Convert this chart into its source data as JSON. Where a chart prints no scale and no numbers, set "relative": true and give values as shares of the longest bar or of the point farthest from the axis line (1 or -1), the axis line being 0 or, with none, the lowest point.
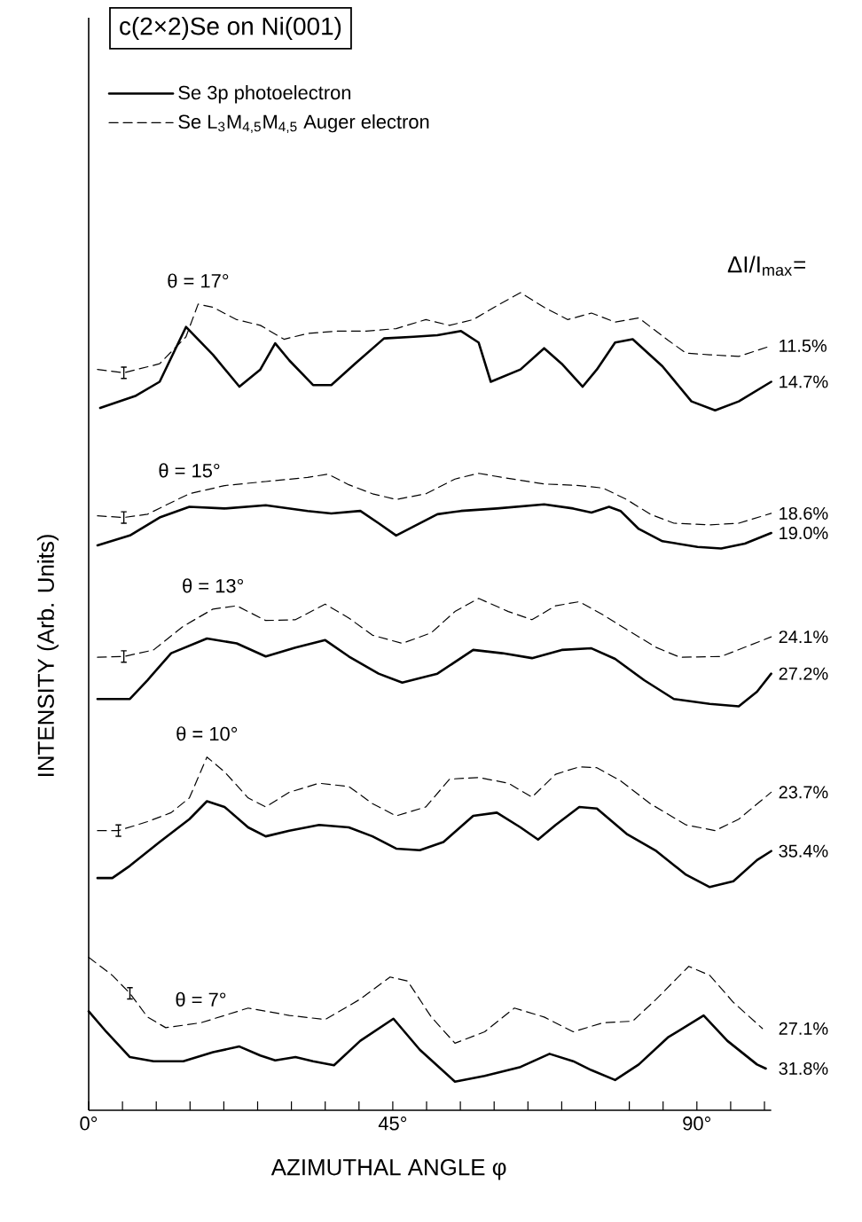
{
  "chart_data": {
    "type": "line",
    "title": "c(2×2)Se on Ni(001)",
    "xlabel": "AZIMUTHAL ANGLE φ",
    "ylabel": "INTENSITY (Arb. Units)",
    "relative": true,
    "legend": "top left",
    "tick_labels": "x",
    "xlim": [
      0,
      101
    ],
    "xticks": [
      {
        "value": 0,
        "label": "0°"
      },
      {
        "value": 5,
        "label": null
      },
      {
        "value": 10,
        "label": null
      },
      {
        "value": 15,
        "label": null
      },
      {
        "value": 20,
        "label": null
      },
      {
        "value": 25,
        "label": null
      },
      {
        "value": 30,
        "label": null
      },
      {
        "value": 35,
        "label": null
      },
      {
        "value": 40,
        "label": null
      },
      {
        "value": 45,
        "label": "45°"
      },
      {
        "value": 50,
        "label": null
      },
      {
        "value": 55,
        "label": null
      },
      {
        "value": 60,
        "label": null
      },
      {
        "value": 65,
        "label": null
      },
      {
        "value": 70,
        "label": null
      },
      {
        "value": 75,
        "label": null
      },
      {
        "value": 80,
        "label": null
      },
      {
        "value": 85,
        "label": null
      },
      {
        "value": 90,
        "label": "90°"
      },
      {
        "value": 95,
        "label": null
      },
      {
        "value": 100,
        "label": null
      }
    ],
    "series": [
      {
        "name": "Se 3p photoelectron",
        "color": "#000000",
        "line_style": "solid",
        "x": [
          1.7,
          7.0,
          10.5,
          14.4,
          18.4,
          22.3,
          25.4,
          27.6,
          29.7,
          33.2,
          35.9,
          39.4,
          43.7,
          48.1,
          51.6,
          55.1,
          57.7,
          59.5,
          63.9,
          67.4,
          70.0,
          73.1,
          75.2,
          77.9,
          80.5,
          84.9,
          89.2,
          92.7,
          96.2,
          101
        ],
        "values": [
          0.859,
          0.874,
          0.891,
          0.958,
          0.924,
          0.885,
          0.906,
          0.938,
          0.917,
          0.887,
          0.887,
          0.913,
          0.944,
          0.946,
          0.948,
          0.953,
          0.939,
          0.891,
          0.906,
          0.932,
          0.913,
          0.885,
          0.906,
          0.939,
          0.943,
          0.91,
          0.867,
          0.856,
          0.867,
          0.891
        ]
      },
      {
        "name": "Se L$_{3}$M$_{4,5}$M$_{4,5}$ Auger electron",
        "color": "#000000",
        "line_style": "dashed",
        "x": [
          1.3,
          5.2,
          10.5,
          14.4,
          16.2,
          18.4,
          21.9,
          25.4,
          28.9,
          32.4,
          36.7,
          41.1,
          45.5,
          49.9,
          53.4,
          56.9,
          60.4,
          63.9,
          67.4,
          70.9,
          74.4,
          77.9,
          81.4,
          85.7,
          88.4,
          91.9,
          96.2,
          101
        ],
        "values": [
          0.906,
          0.902,
          0.913,
          0.946,
          0.986,
          0.982,
          0.967,
          0.96,
          0.943,
          0.95,
          0.953,
          0.953,
          0.956,
          0.967,
          0.96,
          0.967,
          0.984,
          1.0,
          0.982,
          0.967,
          0.975,
          0.964,
          0.969,
          0.942,
          0.926,
          0.924,
          0.922,
          0.935
        ]
      },
      {
        "color": "#000000",
        "line_style": "solid",
        "x": [
          1.3,
          6.1,
          10.5,
          14.9,
          20.1,
          26.2,
          32.4,
          35.9,
          40.2,
          42.9,
          45.5,
          48.1,
          51.6,
          55.1,
          60.4,
          67.4,
          71.7,
          74.4,
          77.0,
          78.7,
          81.4,
          84.9,
          90.1,
          93.6,
          97.1,
          101
        ],
        "values": [
          0.691,
          0.703,
          0.725,
          0.738,
          0.736,
          0.74,
          0.733,
          0.73,
          0.733,
          0.718,
          0.703,
          0.714,
          0.729,
          0.733,
          0.736,
          0.741,
          0.736,
          0.731,
          0.738,
          0.733,
          0.711,
          0.696,
          0.689,
          0.687,
          0.693,
          0.706
        ]
      },
      {
        "color": "#000000",
        "line_style": "dashed",
        "x": [
          1.3,
          5.2,
          8.7,
          11.4,
          14.9,
          20.1,
          26.2,
          32.4,
          35.4,
          38.5,
          42.0,
          45.5,
          49.9,
          54.2,
          57.7,
          61.2,
          67.4,
          72.6,
          76.1,
          79.6,
          83.1,
          86.6,
          91.9,
          96.2,
          101
        ],
        "values": [
          0.727,
          0.725,
          0.729,
          0.74,
          0.754,
          0.764,
          0.769,
          0.774,
          0.778,
          0.765,
          0.754,
          0.747,
          0.754,
          0.772,
          0.779,
          0.774,
          0.766,
          0.764,
          0.761,
          0.747,
          0.729,
          0.718,
          0.716,
          0.718,
          0.73
        ]
      },
      {
        "color": "#000000",
        "line_style": "solid",
        "x": [
          1.3,
          6.1,
          8.7,
          12.2,
          17.5,
          21.9,
          26.2,
          30.6,
          35.0,
          38.5,
          42.9,
          46.4,
          51.6,
          56.9,
          61.2,
          65.6,
          70.0,
          74.4,
          77.9,
          82.2,
          86.6,
          91.9,
          96.2,
          98.9,
          101
        ],
        "values": [
          0.503,
          0.503,
          0.526,
          0.559,
          0.577,
          0.571,
          0.555,
          0.566,
          0.575,
          0.555,
          0.534,
          0.523,
          0.534,
          0.563,
          0.559,
          0.553,
          0.563,
          0.565,
          0.552,
          0.526,
          0.503,
          0.497,
          0.494,
          0.512,
          0.534
        ]
      },
      {
        "color": "#000000",
        "line_style": "dashed",
        "x": [
          1.3,
          5.2,
          9.6,
          14.0,
          18.4,
          21.9,
          26.2,
          30.6,
          35.0,
          38.5,
          42.0,
          46.4,
          50.7,
          54.2,
          57.7,
          62.1,
          65.6,
          69.1,
          72.6,
          76.1,
          79.6,
          84.0,
          87.5,
          93.6,
          101
        ],
        "values": [
          0.554,
          0.555,
          0.563,
          0.592,
          0.613,
          0.617,
          0.599,
          0.6,
          0.619,
          0.602,
          0.581,
          0.571,
          0.584,
          0.61,
          0.626,
          0.61,
          0.6,
          0.617,
          0.622,
          0.606,
          0.588,
          0.566,
          0.554,
          0.555,
          0.579
        ]
      },
      {
        "color": "#000000",
        "line_style": "solid",
        "x": [
          1.3,
          3.5,
          6.1,
          10.5,
          14.9,
          17.5,
          20.1,
          23.6,
          26.2,
          29.7,
          34.1,
          38.5,
          42.0,
          45.5,
          49.0,
          52.5,
          56.9,
          60.4,
          63.9,
          66.5,
          69.1,
          72.6,
          75.2,
          79.6,
          84.0,
          88.4,
          91.9,
          95.4,
          98.9,
          101
        ],
        "values": [
          0.284,
          0.284,
          0.299,
          0.328,
          0.356,
          0.378,
          0.371,
          0.346,
          0.335,
          0.342,
          0.349,
          0.346,
          0.335,
          0.32,
          0.318,
          0.328,
          0.36,
          0.364,
          0.346,
          0.331,
          0.349,
          0.371,
          0.369,
          0.338,
          0.317,
          0.288,
          0.273,
          0.28,
          0.306,
          0.317
        ]
      },
      {
        "color": "#000000",
        "line_style": "dashed",
        "x": [
          1.3,
          4.4,
          8.7,
          12.2,
          14.9,
          17.5,
          20.1,
          23.6,
          26.2,
          29.7,
          34.1,
          38.5,
          42.0,
          45.5,
          49.9,
          53.4,
          57.7,
          62.1,
          65.6,
          69.1,
          72.6,
          75.2,
          78.7,
          83.1,
          88.4,
          92.7,
          96.2,
          101
        ],
        "values": [
          0.342,
          0.342,
          0.353,
          0.364,
          0.382,
          0.432,
          0.414,
          0.382,
          0.371,
          0.389,
          0.4,
          0.396,
          0.375,
          0.36,
          0.371,
          0.405,
          0.407,
          0.4,
          0.383,
          0.411,
          0.42,
          0.419,
          0.403,
          0.375,
          0.349,
          0.342,
          0.356,
          0.389
        ]
      },
      {
        "color": "#000000",
        "line_style": "solid",
        "x": [
          0,
          2.6,
          6.1,
          9.6,
          14.0,
          18.4,
          22.3,
          25.4,
          27.6,
          30.6,
          33.2,
          36.3,
          40.2,
          45.1,
          49.0,
          54.2,
          58.6,
          63.9,
          68.2,
          71.7,
          74.4,
          77.9,
          81.4,
          85.7,
          91.0,
          94.5,
          98.9,
          100.2
        ],
        "values": [
          0.121,
          0.096,
          0.065,
          0.06,
          0.06,
          0.071,
          0.078,
          0.067,
          0.061,
          0.065,
          0.06,
          0.055,
          0.085,
          0.112,
          0.074,
          0.035,
          0.042,
          0.053,
          0.069,
          0.06,
          0.049,
          0.037,
          0.056,
          0.089,
          0.116,
          0.085,
          0.056,
          0.051
        ]
      },
      {
        "color": "#000000",
        "line_style": "dashed",
        "x": [
          0,
          3.5,
          6.1,
          8.7,
          11.4,
          16.6,
          23.6,
          29.7,
          35.0,
          40.2,
          44.6,
          47.2,
          50.7,
          54.2,
          58.6,
          63.0,
          67.4,
          71.7,
          76.1,
          80.5,
          84.0,
          88.8,
          91.9,
          95.4,
          99.7
        ],
        "values": [
          0.187,
          0.165,
          0.143,
          0.114,
          0.101,
          0.107,
          0.125,
          0.116,
          0.111,
          0.136,
          0.163,
          0.158,
          0.114,
          0.082,
          0.096,
          0.125,
          0.114,
          0.096,
          0.107,
          0.109,
          0.136,
          0.176,
          0.165,
          0.132,
          0.1
        ]
      }
    ],
    "annotations": [
      "ΔI/I$_{max}$=",
      {
        "text": "θ = 17°",
        "x": 16.2,
        "y": 0.986
      },
      {
        "text": "θ = 15°",
        "x": 14.9,
        "y": 0.754
      },
      {
        "text": "θ = 13°",
        "x": 18.4,
        "y": 0.613
      },
      {
        "text": "θ = 10°",
        "x": 17.5,
        "y": 0.432
      },
      {
        "text": "θ = 7°",
        "x": 16.6,
        "y": 0.107
      },
      {
        "text": "11.5%",
        "x": 101,
        "y": 0.935
      },
      {
        "text": "14.7%",
        "x": 101,
        "y": 0.891
      },
      {
        "text": "18.6%",
        "x": 101,
        "y": 0.73
      },
      {
        "text": "19.0%",
        "x": 101,
        "y": 0.706
      },
      {
        "text": "24.1%",
        "x": 101,
        "y": 0.579
      },
      {
        "text": "27.2%",
        "x": 101,
        "y": 0.534
      },
      {
        "text": "23.7%",
        "x": 101,
        "y": 0.389
      },
      {
        "text": "35.4%",
        "x": 101,
        "y": 0.317
      },
      {
        "text": "27.1%",
        "x": 99.7,
        "y": 0.1
      },
      {
        "text": "31.8%",
        "x": 100.2,
        "y": 0.051
      }
    ]
  }
}
